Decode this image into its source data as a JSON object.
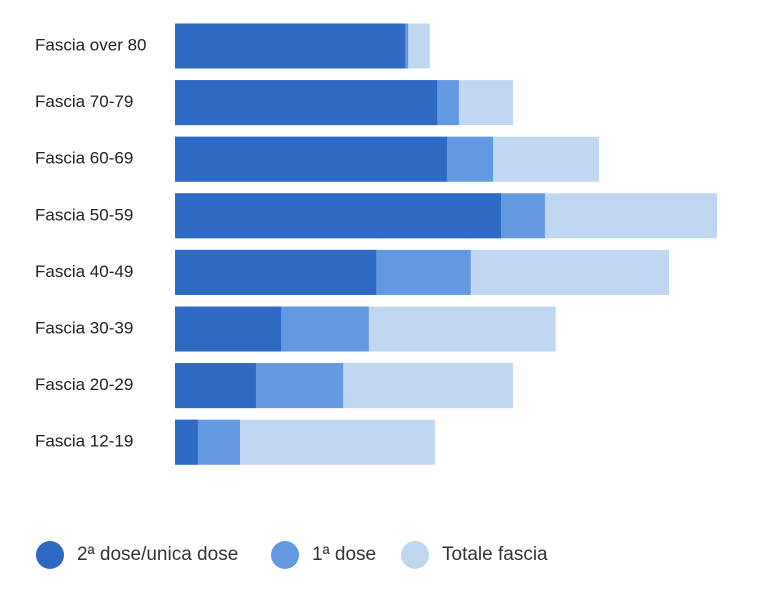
{
  "chart_data": {
    "type": "bar",
    "orientation": "horizontal",
    "mode": "overlap",
    "categories": [
      "Fascia over 80",
      "Fascia 70-79",
      "Fascia 60-69",
      "Fascia 50-59",
      "Fascia 40-49",
      "Fascia 30-39",
      "Fascia 20-29",
      "Fascia 12-19"
    ],
    "series": [
      {
        "name": "2ª dose/unica dose",
        "color": "#2e69c4",
        "values": [
          4.04,
          4.6,
          4.77,
          5.72,
          3.53,
          1.86,
          1.42,
          0.4
        ]
      },
      {
        "name": "1ª dose",
        "color": "#6399e0",
        "values": [
          4.09,
          4.98,
          5.58,
          6.49,
          5.19,
          3.4,
          2.95,
          1.14
        ]
      },
      {
        "name": "Totale fascia",
        "color": "#c0d7f2",
        "values": [
          4.47,
          5.93,
          7.44,
          9.51,
          8.67,
          6.68,
          5.93,
          4.56
        ]
      }
    ]
  }
}
